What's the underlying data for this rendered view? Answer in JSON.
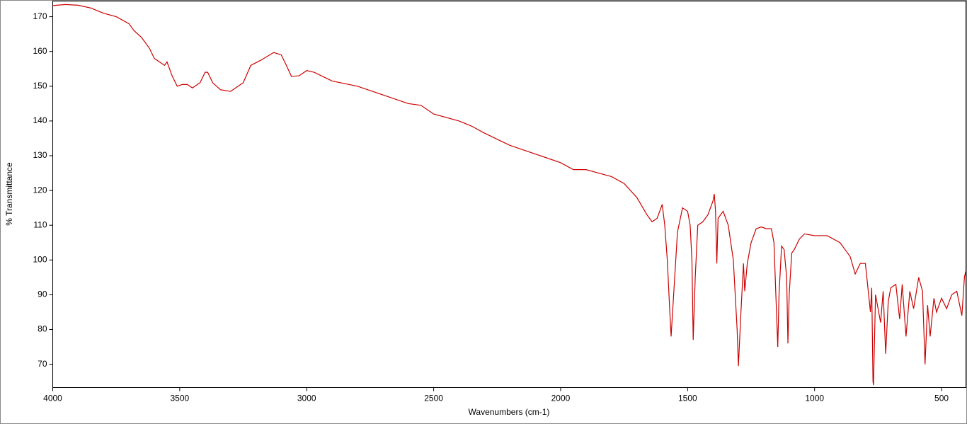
{
  "chart_data": {
    "type": "line",
    "x_label": "Wavenumbers (cm-1)",
    "y_label": "% Transmittance",
    "xlim": [
      4000,
      404
    ],
    "ylim": [
      63.3,
      174.5
    ],
    "xticks": [
      4000,
      3500,
      3000,
      2500,
      2000,
      1500,
      1000,
      500
    ],
    "yticks": [
      70,
      80,
      90,
      100,
      110,
      120,
      130,
      140,
      150,
      160,
      170
    ],
    "x_reversed": true,
    "grid": false,
    "series": [
      {
        "color": "#cc0000",
        "x": [
          4000,
          3950,
          3900,
          3850,
          3800,
          3750,
          3700,
          3680,
          3650,
          3620,
          3600,
          3580,
          3560,
          3550,
          3530,
          3510,
          3490,
          3470,
          3450,
          3420,
          3400,
          3390,
          3370,
          3340,
          3300,
          3250,
          3220,
          3180,
          3130,
          3100,
          3080,
          3060,
          3030,
          3000,
          2970,
          2900,
          2800,
          2700,
          2600,
          2550,
          2500,
          2400,
          2350,
          2300,
          2200,
          2100,
          2000,
          1950,
          1900,
          1850,
          1800,
          1750,
          1700,
          1660,
          1640,
          1620,
          1600,
          1590,
          1580,
          1570,
          1565,
          1555,
          1540,
          1520,
          1500,
          1490,
          1483,
          1478,
          1470,
          1460,
          1440,
          1420,
          1400,
          1395,
          1390,
          1385,
          1380,
          1360,
          1340,
          1320,
          1305,
          1300,
          1290,
          1280,
          1275,
          1265,
          1250,
          1230,
          1210,
          1190,
          1170,
          1160,
          1150,
          1145,
          1140,
          1130,
          1120,
          1110,
          1105,
          1100,
          1090,
          1080,
          1060,
          1040,
          1000,
          950,
          900,
          880,
          860,
          840,
          820,
          800,
          790,
          780,
          775,
          770,
          768,
          760,
          750,
          740,
          730,
          720,
          710,
          700,
          680,
          665,
          655,
          640,
          625,
          610,
          590,
          575,
          565,
          555,
          545,
          530,
          520,
          500,
          480,
          460,
          440,
          420,
          410,
          404
        ],
        "values": [
          173.2,
          173.5,
          173.3,
          172.5,
          171,
          170,
          168,
          166,
          164,
          161,
          158,
          157,
          156,
          157,
          153,
          150,
          150.5,
          150.5,
          149.5,
          151,
          154,
          154,
          151,
          149,
          148.5,
          151,
          156,
          157.5,
          159.7,
          159,
          156,
          152.8,
          153,
          154.5,
          154,
          151.5,
          150,
          147.5,
          145,
          144.5,
          142,
          140,
          138.5,
          136.5,
          133,
          130.5,
          128,
          126,
          126,
          125,
          124,
          122,
          118,
          113,
          111,
          112,
          116,
          110,
          100,
          85,
          78,
          90,
          108,
          115,
          114,
          110,
          100,
          77,
          95,
          110,
          111,
          113,
          117,
          119,
          114,
          99,
          112,
          114,
          110,
          100,
          80,
          69.5,
          85,
          99,
          91,
          99,
          105,
          109,
          109.5,
          109,
          109,
          105,
          85,
          75,
          90,
          104,
          103,
          95,
          76,
          90,
          102,
          103,
          106,
          107.5,
          107,
          107,
          105,
          103,
          101,
          96,
          99,
          99,
          92,
          85,
          92,
          65,
          64,
          90,
          86,
          82,
          91,
          73,
          88,
          92,
          93,
          83,
          93,
          78,
          91,
          86,
          95,
          91,
          70,
          87,
          78,
          89,
          85,
          89,
          86,
          90,
          91,
          84,
          95,
          97
        ]
      }
    ]
  }
}
